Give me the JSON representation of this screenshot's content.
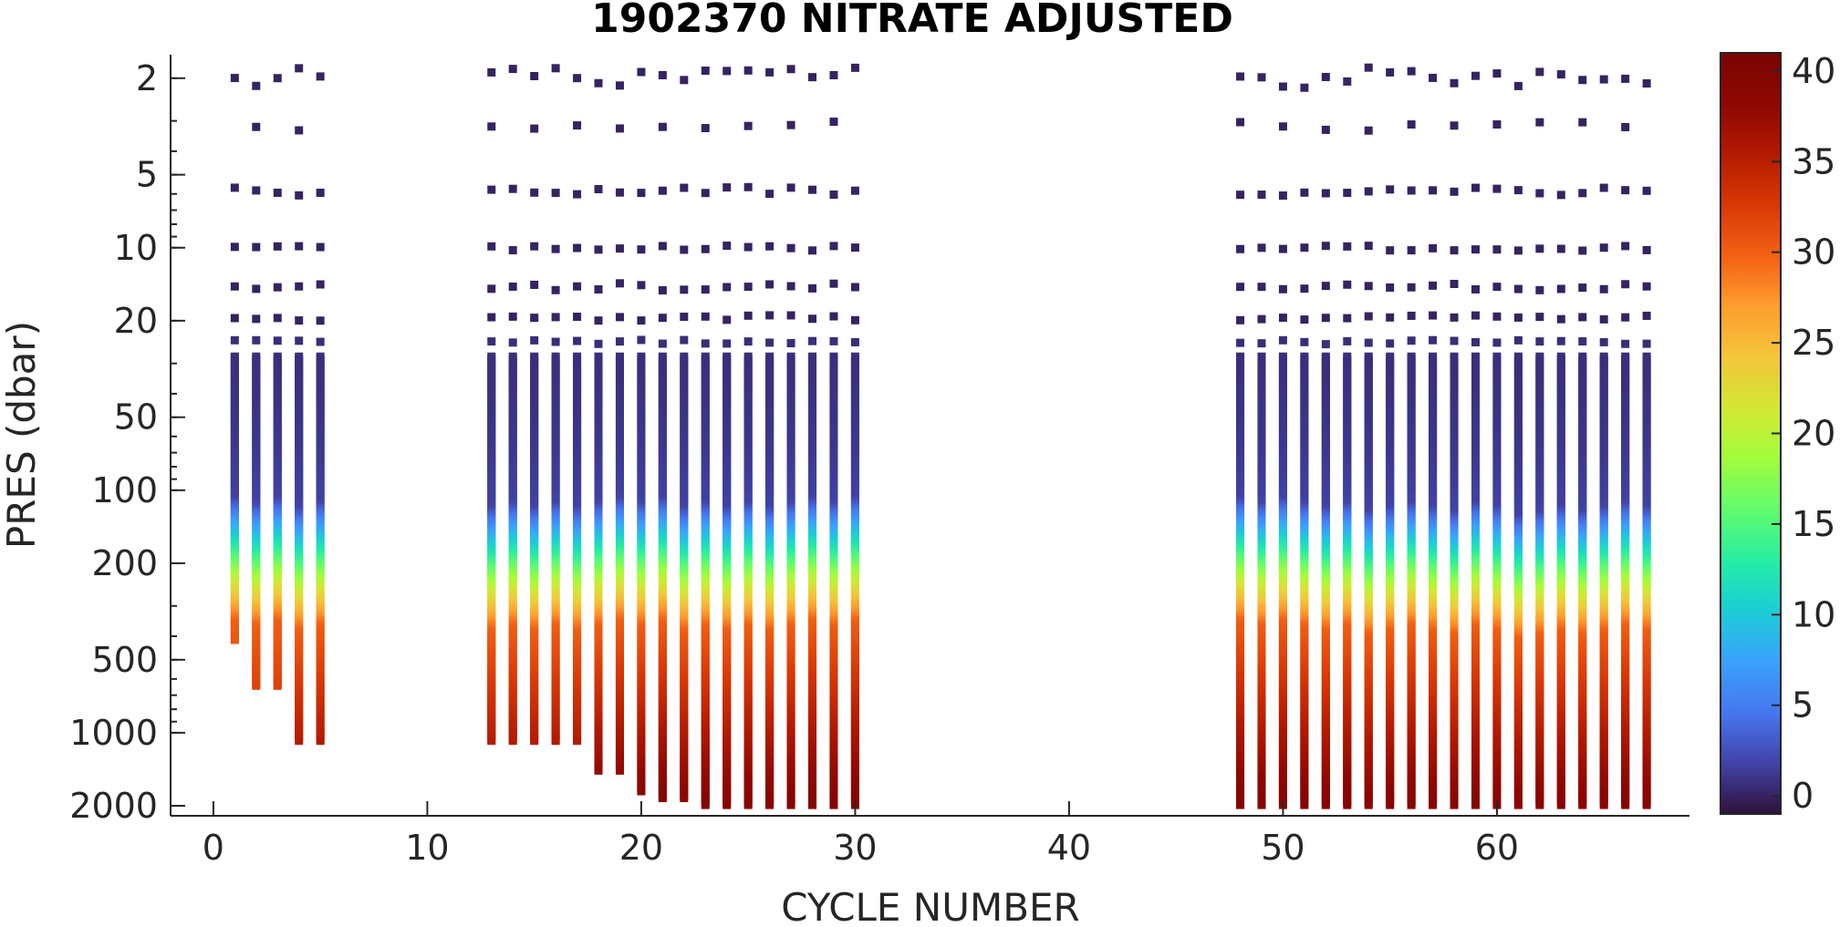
{
  "chart_data": {
    "type": "scatter",
    "title": "1902370  NITRATE ADJUSTED",
    "xlabel": "CYCLE NUMBER",
    "ylabel": "PRES (dbar)",
    "xlim": [
      -2,
      69
    ],
    "ylim": [
      1.6,
      2200
    ],
    "yscale": "log",
    "yreverse": true,
    "grid": false,
    "xticks": [
      {
        "value": 0,
        "label": "0"
      },
      {
        "value": 10,
        "label": "10"
      },
      {
        "value": 20,
        "label": "20"
      },
      {
        "value": 30,
        "label": "30"
      },
      {
        "value": 40,
        "label": "40"
      },
      {
        "value": 50,
        "label": "50"
      },
      {
        "value": 60,
        "label": "60"
      }
    ],
    "yticks": [
      {
        "value": 2,
        "label": "2"
      },
      {
        "value": 5,
        "label": "5"
      },
      {
        "value": 10,
        "label": "10"
      },
      {
        "value": 20,
        "label": "20"
      },
      {
        "value": 50,
        "label": "50"
      },
      {
        "value": 100,
        "label": "100"
      },
      {
        "value": 200,
        "label": "200"
      },
      {
        "value": 500,
        "label": "500"
      },
      {
        "value": 1000,
        "label": "1000"
      },
      {
        "value": 2000,
        "label": "2000"
      }
    ],
    "colorbar": {
      "clim": [
        -1,
        41
      ],
      "colormap": "turbo",
      "ticks": [
        {
          "value": 0,
          "label": "0"
        },
        {
          "value": 5,
          "label": "5"
        },
        {
          "value": 10,
          "label": "10"
        },
        {
          "value": 15,
          "label": "15"
        },
        {
          "value": 20,
          "label": "20"
        },
        {
          "value": 25,
          "label": "25"
        },
        {
          "value": 30,
          "label": "30"
        },
        {
          "value": 35,
          "label": "35"
        },
        {
          "value": 40,
          "label": "40"
        }
      ]
    },
    "profiles": [
      {
        "cycle": 1,
        "pmax": 420,
        "nitracline": 110,
        "deep": 35
      },
      {
        "cycle": 2,
        "pmax": 650,
        "nitracline": 115,
        "deep": 36
      },
      {
        "cycle": 3,
        "pmax": 650,
        "nitracline": 110,
        "deep": 36
      },
      {
        "cycle": 4,
        "pmax": 1100,
        "nitracline": 120,
        "deep": 39
      },
      {
        "cycle": 5,
        "pmax": 1100,
        "nitracline": 115,
        "deep": 39
      },
      {
        "cycle": 13,
        "pmax": 1100,
        "nitracline": 120,
        "deep": 39
      },
      {
        "cycle": 14,
        "pmax": 1100,
        "nitracline": 115,
        "deep": 39
      },
      {
        "cycle": 15,
        "pmax": 1100,
        "nitracline": 120,
        "deep": 39
      },
      {
        "cycle": 16,
        "pmax": 1100,
        "nitracline": 115,
        "deep": 39
      },
      {
        "cycle": 17,
        "pmax": 1100,
        "nitracline": 120,
        "deep": 39
      },
      {
        "cycle": 18,
        "pmax": 1450,
        "nitracline": 115,
        "deep": 40
      },
      {
        "cycle": 19,
        "pmax": 1450,
        "nitracline": 110,
        "deep": 40
      },
      {
        "cycle": 20,
        "pmax": 1750,
        "nitracline": 115,
        "deep": 40
      },
      {
        "cycle": 21,
        "pmax": 1900,
        "nitracline": 110,
        "deep": 40
      },
      {
        "cycle": 22,
        "pmax": 1900,
        "nitracline": 120,
        "deep": 40
      },
      {
        "cycle": 23,
        "pmax": 2000,
        "nitracline": 115,
        "deep": 40
      },
      {
        "cycle": 24,
        "pmax": 2000,
        "nitracline": 120,
        "deep": 40
      },
      {
        "cycle": 25,
        "pmax": 2000,
        "nitracline": 115,
        "deep": 40
      },
      {
        "cycle": 26,
        "pmax": 2000,
        "nitracline": 120,
        "deep": 40
      },
      {
        "cycle": 27,
        "pmax": 2000,
        "nitracline": 115,
        "deep": 40
      },
      {
        "cycle": 28,
        "pmax": 2000,
        "nitracline": 110,
        "deep": 40
      },
      {
        "cycle": 29,
        "pmax": 2000,
        "nitracline": 115,
        "deep": 40
      },
      {
        "cycle": 30,
        "pmax": 2000,
        "nitracline": 110,
        "deep": 40
      },
      {
        "cycle": 48,
        "pmax": 2000,
        "nitracline": 110,
        "deep": 40
      },
      {
        "cycle": 49,
        "pmax": 2000,
        "nitracline": 115,
        "deep": 40
      },
      {
        "cycle": 50,
        "pmax": 2000,
        "nitracline": 110,
        "deep": 40
      },
      {
        "cycle": 51,
        "pmax": 2000,
        "nitracline": 115,
        "deep": 40
      },
      {
        "cycle": 52,
        "pmax": 2000,
        "nitracline": 120,
        "deep": 40
      },
      {
        "cycle": 53,
        "pmax": 2000,
        "nitracline": 115,
        "deep": 40
      },
      {
        "cycle": 54,
        "pmax": 2000,
        "nitracline": 125,
        "deep": 40
      },
      {
        "cycle": 55,
        "pmax": 2000,
        "nitracline": 120,
        "deep": 40
      },
      {
        "cycle": 56,
        "pmax": 2000,
        "nitracline": 115,
        "deep": 40
      },
      {
        "cycle": 57,
        "pmax": 2000,
        "nitracline": 120,
        "deep": 40
      },
      {
        "cycle": 58,
        "pmax": 2000,
        "nitracline": 125,
        "deep": 40
      },
      {
        "cycle": 59,
        "pmax": 2000,
        "nitracline": 115,
        "deep": 40
      },
      {
        "cycle": 60,
        "pmax": 2000,
        "nitracline": 120,
        "deep": 40
      },
      {
        "cycle": 61,
        "pmax": 2000,
        "nitracline": 130,
        "deep": 40
      },
      {
        "cycle": 62,
        "pmax": 2000,
        "nitracline": 125,
        "deep": 40
      },
      {
        "cycle": 63,
        "pmax": 2000,
        "nitracline": 120,
        "deep": 40
      },
      {
        "cycle": 64,
        "pmax": 2000,
        "nitracline": 125,
        "deep": 40
      },
      {
        "cycle": 65,
        "pmax": 2000,
        "nitracline": 120,
        "deep": 40
      },
      {
        "cycle": 66,
        "pmax": 2000,
        "nitracline": 115,
        "deep": 40
      },
      {
        "cycle": 67,
        "pmax": 2000,
        "nitracline": 120,
        "deep": 40
      }
    ]
  }
}
